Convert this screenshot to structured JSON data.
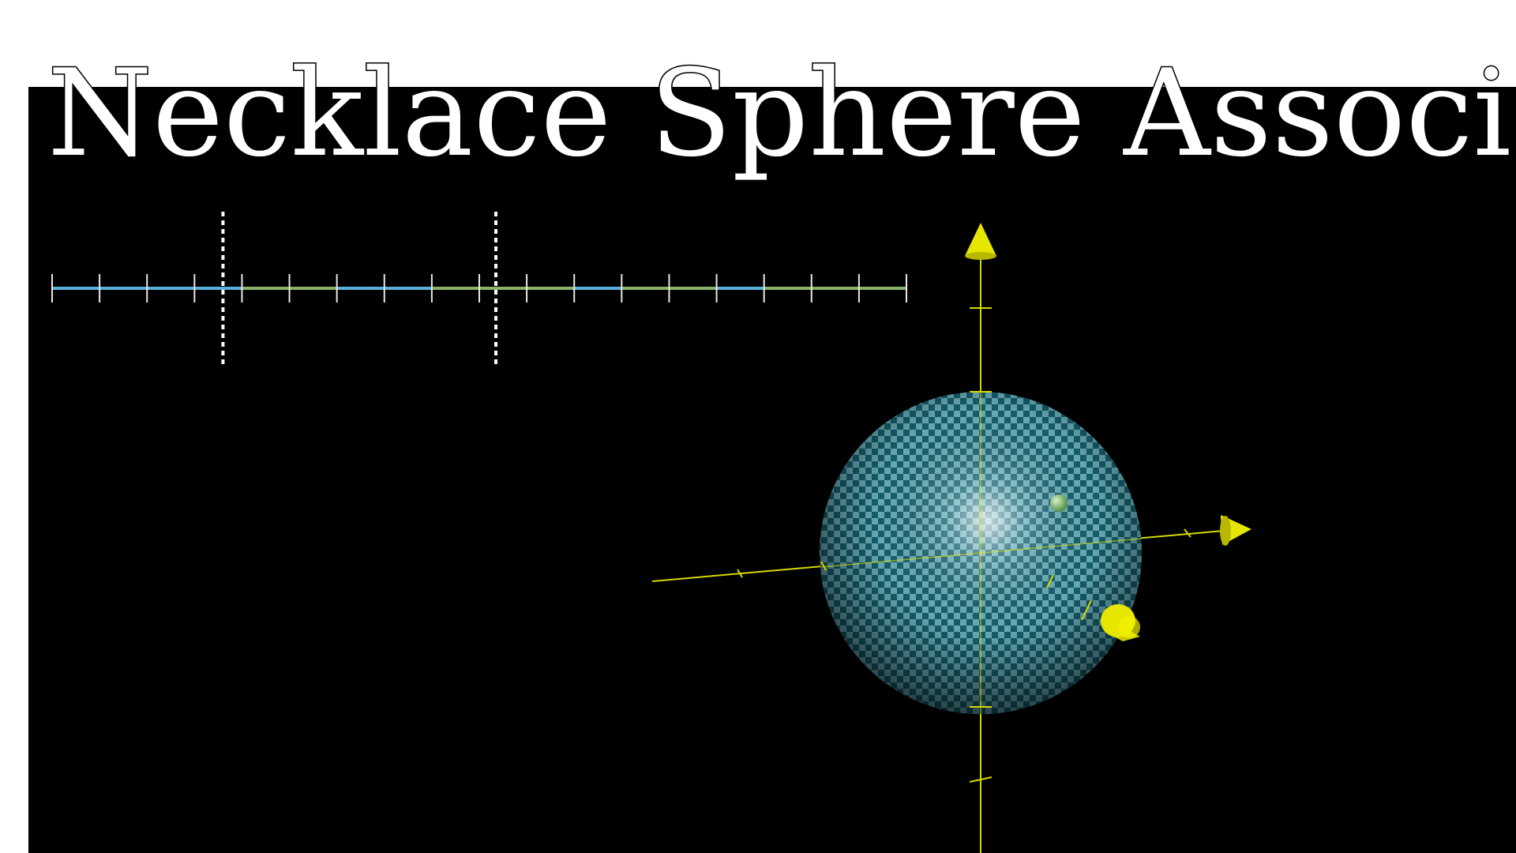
{
  "title": "Necklace Sphere Association",
  "necklace": {
    "segment_count": 18,
    "segment_colors": [
      "#5ab0dc",
      "#8ab26a"
    ],
    "segment_color_sequence": [
      0,
      0,
      0,
      0,
      1,
      1,
      0,
      0,
      1,
      1,
      1,
      0,
      1,
      1,
      0,
      1,
      1,
      1
    ],
    "cut_positions": [
      3.6,
      9.35
    ]
  },
  "sphere": {
    "color": "#1e8fa6",
    "checker_color": "#9fd2dc",
    "point_color": "#7fc06a"
  },
  "axes": {
    "color": "#e6e600"
  }
}
